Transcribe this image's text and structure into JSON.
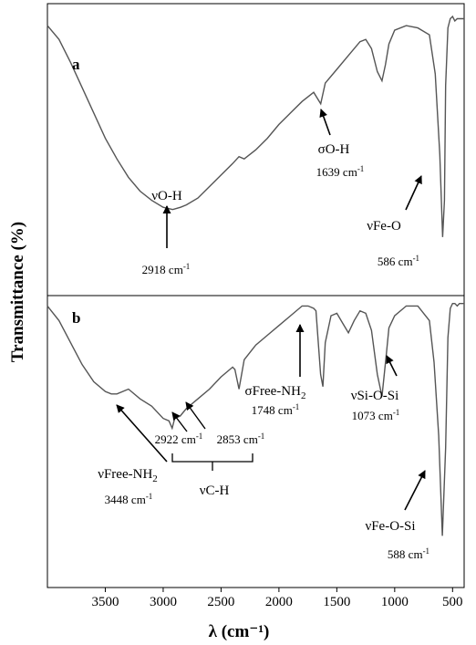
{
  "chart_data": {
    "type": "line",
    "xlabel": "λ (cm⁻¹)",
    "ylabel": "Transmittance (%)",
    "x_reversed": true,
    "xlim": [
      4000,
      400
    ],
    "xticks": [
      3500,
      3000,
      2500,
      2000,
      1500,
      1000,
      500
    ],
    "grid": false,
    "series": [
      {
        "name": "a",
        "x": [
          4000,
          3900,
          3800,
          3700,
          3600,
          3500,
          3400,
          3300,
          3200,
          3100,
          3000,
          2918,
          2850,
          2800,
          2700,
          2600,
          2500,
          2400,
          2345,
          2300,
          2200,
          2100,
          2000,
          1900,
          1800,
          1700,
          1639,
          1600,
          1500,
          1400,
          1300,
          1250,
          1200,
          1150,
          1110,
          1080,
          1050,
          1000,
          900,
          800,
          700,
          650,
          610,
          586,
          570,
          560,
          540,
          520,
          500,
          480,
          460,
          440,
          420,
          400
        ],
        "y": [
          96,
          90,
          80,
          69,
          58,
          47,
          38,
          30,
          24,
          20,
          17,
          16,
          17,
          18,
          21,
          26,
          31,
          36,
          39,
          38,
          42,
          47,
          53,
          58,
          63,
          67,
          62,
          71,
          77,
          83,
          89,
          90,
          86,
          76,
          72,
          79,
          88,
          94,
          96,
          95,
          92,
          75,
          40,
          4,
          20,
          70,
          95,
          99,
          100,
          98,
          99,
          99,
          99,
          99
        ]
      },
      {
        "name": "b",
        "x": [
          4000,
          3900,
          3800,
          3700,
          3600,
          3500,
          3448,
          3400,
          3300,
          3200,
          3100,
          3000,
          2950,
          2922,
          2900,
          2853,
          2800,
          2700,
          2600,
          2500,
          2400,
          2380,
          2345,
          2300,
          2200,
          2100,
          2000,
          1900,
          1800,
          1748,
          1700,
          1680,
          1640,
          1620,
          1600,
          1550,
          1500,
          1450,
          1400,
          1350,
          1300,
          1250,
          1200,
          1150,
          1110,
          1073,
          1050,
          1000,
          900,
          800,
          700,
          660,
          620,
          588,
          560,
          540,
          520,
          500,
          480,
          460,
          440,
          420,
          400
        ],
        "y": [
          98,
          92,
          83,
          74,
          67,
          63,
          62,
          62,
          64,
          60,
          57,
          52,
          51,
          48,
          52,
          53,
          56,
          60,
          64,
          69,
          73,
          72,
          64,
          76,
          82,
          86,
          90,
          94,
          98,
          98,
          97,
          96,
          70,
          65,
          83,
          94,
          95,
          91,
          87,
          92,
          96,
          95,
          88,
          70,
          61,
          78,
          89,
          94,
          98,
          98,
          92,
          75,
          45,
          4,
          40,
          85,
          97,
          99,
          99,
          98,
          99,
          99,
          99
        ]
      }
    ]
  },
  "panels": {
    "a_label": "a",
    "b_label": "b"
  },
  "annotations": {
    "a_oh": "νO-H",
    "a_oh_num": "2918 cm",
    "a_bend": "σO-H",
    "a_bend_num": "1639 cm",
    "a_feo": "νFe-O",
    "a_feo_num": "586 cm",
    "b_nh2": "νFree-NH",
    "b_nh2_sub": "2",
    "b_nh2_num": "3448 cm",
    "b_ch1_num": "2922 cm",
    "b_ch2_num": "2853 cm",
    "b_ch": "νC-H",
    "b_sigma": "σFree-NH",
    "b_sigma_sub": "2",
    "b_sigma_num": "1748 cm",
    "b_sios": "νSi-O-Si",
    "b_sios_num": "1073 cm",
    "b_feosi": "νFe-O-Si",
    "b_feosi_num": "588 cm",
    "unit_sup": "-1"
  },
  "colors": {
    "line": "#555555",
    "frame": "#000000"
  }
}
